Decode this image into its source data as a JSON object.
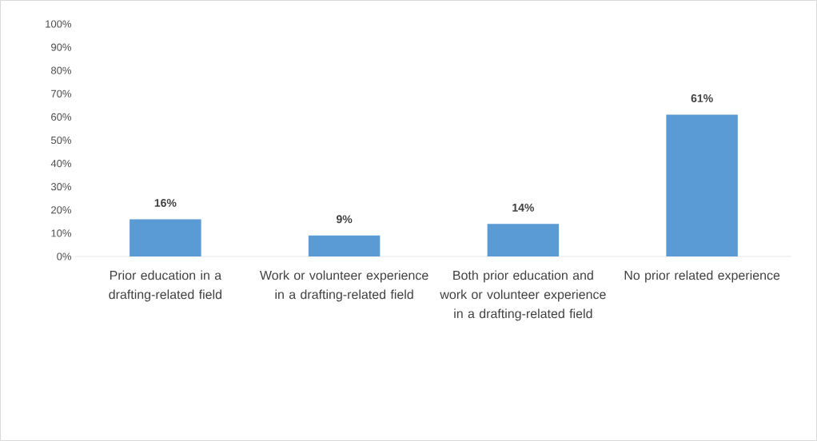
{
  "chart_data": {
    "type": "bar",
    "categories": [
      "Prior education in a drafting-related field",
      "Work or volunteer experience in a drafting-related field",
      "Both prior education and work or volunteer experience in a drafting-related field",
      "No prior related experience"
    ],
    "values": [
      16,
      9,
      14,
      61
    ],
    "value_labels": [
      "16%",
      "9%",
      "14%",
      "61%"
    ],
    "color": "#5b9bd5",
    "ylim": [
      0,
      100
    ],
    "yticks": [
      {
        "value": 0,
        "label": "0%"
      },
      {
        "value": 10,
        "label": "10%"
      },
      {
        "value": 20,
        "label": "20%"
      },
      {
        "value": 30,
        "label": "30%"
      },
      {
        "value": 40,
        "label": "40%"
      },
      {
        "value": 50,
        "label": "50%"
      },
      {
        "value": 60,
        "label": "60%"
      },
      {
        "value": 70,
        "label": "70%"
      },
      {
        "value": 80,
        "label": "80%"
      },
      {
        "value": 90,
        "label": "90%"
      },
      {
        "value": 100,
        "label": "100%"
      }
    ]
  }
}
